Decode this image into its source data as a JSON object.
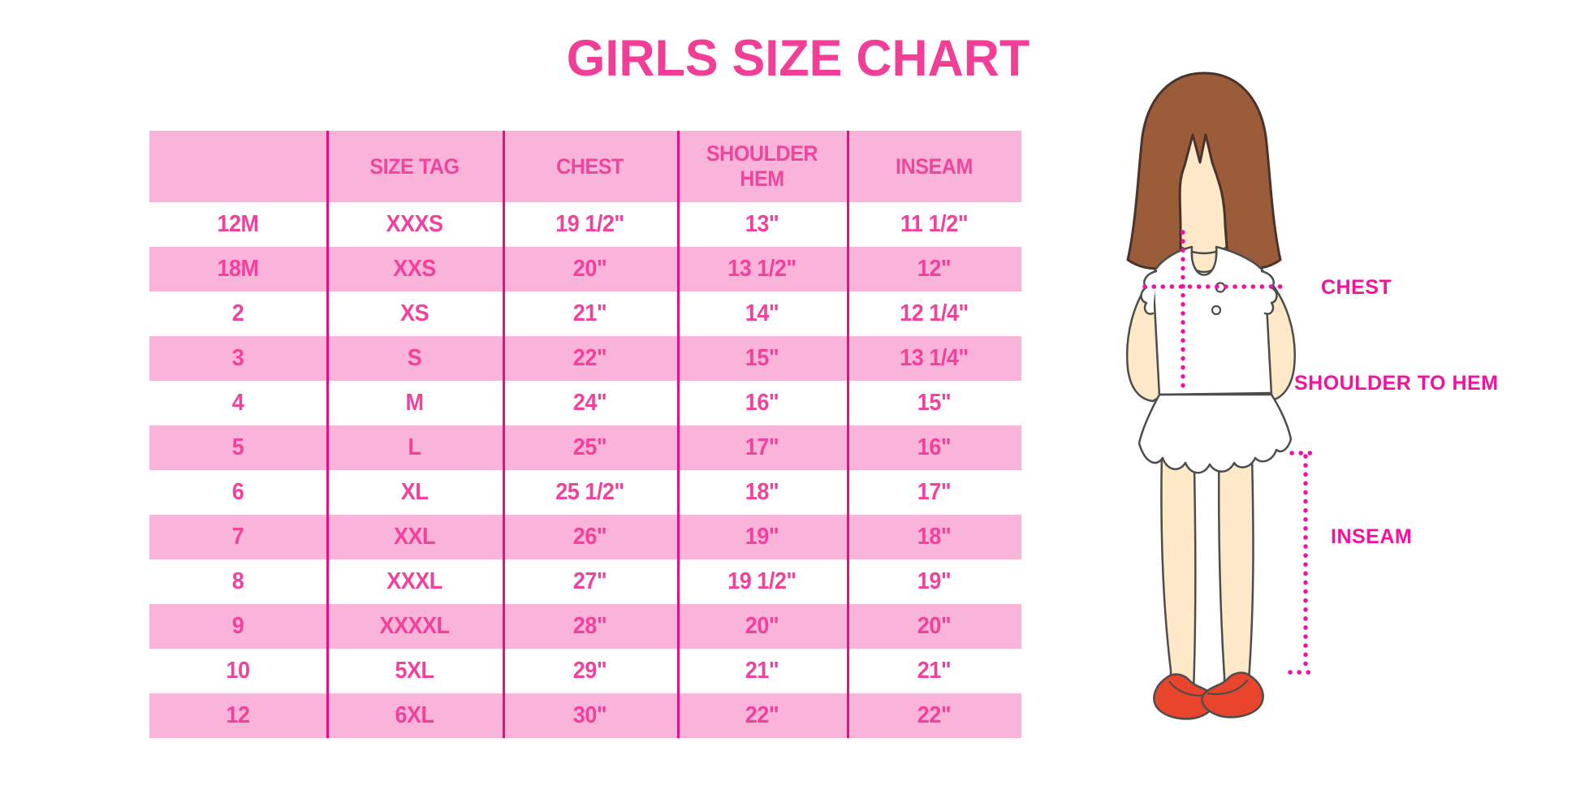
{
  "title": "GIRLS SIZE CHART",
  "colors": {
    "title_pink": "#F23E96",
    "row_pink": "#FAB4DA",
    "row_white": "#FFFFFF",
    "divider_magenta": "#E40F83",
    "cell_text_pink": "#F2419D",
    "label_magenta": "#F3129B",
    "hair_brown": "#9A5C39",
    "skin_tone": "#FDE9C7",
    "shoe_red": "#E8452C"
  },
  "figure_labels": {
    "chest": "CHEST",
    "shoulder_to_hem": "SHOULDER TO HEM",
    "inseam": "INSEAM"
  },
  "chart_data": {
    "type": "table",
    "title": "GIRLS SIZE CHART",
    "columns": [
      "",
      "SIZE TAG",
      "CHEST",
      "SHOULDER HEM",
      "INSEAM"
    ],
    "rows": [
      [
        "12M",
        "XXXS",
        "19 1/2\"",
        "13\"",
        "11 1/2\""
      ],
      [
        "18M",
        "XXS",
        "20\"",
        "13 1/2\"",
        "12\""
      ],
      [
        "2",
        "XS",
        "21\"",
        "14\"",
        "12 1/4\""
      ],
      [
        "3",
        "S",
        "22\"",
        "15\"",
        "13 1/4\""
      ],
      [
        "4",
        "M",
        "24\"",
        "16\"",
        "15\""
      ],
      [
        "5",
        "L",
        "25\"",
        "17\"",
        "16\""
      ],
      [
        "6",
        "XL",
        "25 1/2\"",
        "18\"",
        "17\""
      ],
      [
        "7",
        "XXL",
        "26\"",
        "19\"",
        "18\""
      ],
      [
        "8",
        "XXXL",
        "27\"",
        "19 1/2\"",
        "19\""
      ],
      [
        "9",
        "XXXXL",
        "28\"",
        "20\"",
        "20\""
      ],
      [
        "10",
        "5XL",
        "29\"",
        "21\"",
        "21\""
      ],
      [
        "12",
        "6XL",
        "30\"",
        "22\"",
        "22\""
      ]
    ],
    "notes": "Alternating white/pink striped rows; measurement diagram of girl at right with CHEST, SHOULDER TO HEM and INSEAM guides"
  }
}
